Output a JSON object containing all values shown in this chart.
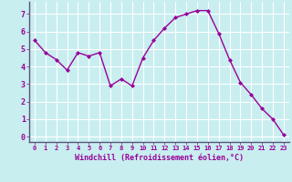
{
  "x": [
    0,
    1,
    2,
    3,
    4,
    5,
    6,
    7,
    8,
    9,
    10,
    11,
    12,
    13,
    14,
    15,
    16,
    17,
    18,
    19,
    20,
    21,
    22,
    23
  ],
  "y": [
    5.5,
    4.8,
    4.4,
    3.8,
    4.8,
    4.6,
    4.8,
    2.9,
    3.3,
    2.9,
    4.5,
    5.5,
    6.2,
    6.8,
    7.0,
    7.2,
    7.2,
    5.9,
    4.4,
    3.1,
    2.4,
    1.6,
    1.0,
    0.1
  ],
  "line_color": "#990099",
  "marker": "D",
  "marker_size": 2.0,
  "bg_color": "#c8eef0",
  "grid_color": "#ffffff",
  "xlabel": "Windchill (Refroidissement éolien,°C)",
  "xlabel_color": "#990099",
  "tick_color": "#990099",
  "spine_color": "#555577",
  "ylim": [
    -0.3,
    7.7
  ],
  "xlim": [
    -0.5,
    23.5
  ],
  "yticks": [
    0,
    1,
    2,
    3,
    4,
    5,
    6,
    7
  ],
  "xticks": [
    0,
    1,
    2,
    3,
    4,
    5,
    6,
    7,
    8,
    9,
    10,
    11,
    12,
    13,
    14,
    15,
    16,
    17,
    18,
    19,
    20,
    21,
    22,
    23
  ]
}
